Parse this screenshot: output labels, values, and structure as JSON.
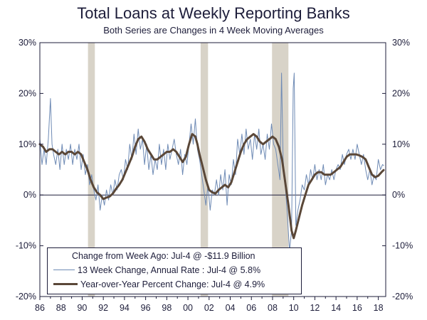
{
  "chart_data": {
    "type": "line",
    "title": "Total Loans at Weekly Reporting Banks",
    "subtitle": "Both Series are Changes in 4 Week Moving Averages",
    "ylim": [
      -20,
      30
    ],
    "y_ticks": [
      "30%",
      "20%",
      "10%",
      "0%",
      "-10%",
      "-20%"
    ],
    "y_tick_values": [
      30,
      20,
      10,
      0,
      -10,
      -20
    ],
    "x_range": [
      1986,
      2018.7
    ],
    "x_ticks": [
      "86",
      "88",
      "90",
      "92",
      "94",
      "96",
      "98",
      "00",
      "02",
      "04",
      "06",
      "08",
      "10",
      "12",
      "14",
      "16",
      "18"
    ],
    "x_tick_values": [
      1986,
      1988,
      1990,
      1992,
      1994,
      1996,
      1998,
      2000,
      2002,
      2004,
      2006,
      2008,
      2010,
      2012,
      2014,
      2016,
      2018
    ],
    "recessions": [
      [
        1990.55,
        1991.2
      ],
      [
        2001.2,
        2001.9
      ],
      [
        2007.95,
        2009.5
      ]
    ],
    "legend_title": "Change from Week Ago: Jul-4 @ -$11.9 Billion",
    "series": [
      {
        "name": "13 Week Change, Annual Rate : Jul-4 @ 5.8%",
        "color": "#6f8bb5",
        "style": "thin",
        "points": [
          [
            1986.0,
            11
          ],
          [
            1986.2,
            6
          ],
          [
            1986.4,
            9
          ],
          [
            1986.6,
            6
          ],
          [
            1986.8,
            11
          ],
          [
            1987.0,
            19
          ],
          [
            1987.15,
            10
          ],
          [
            1987.3,
            8
          ],
          [
            1987.5,
            6
          ],
          [
            1987.7,
            9
          ],
          [
            1987.9,
            5
          ],
          [
            1988.1,
            10
          ],
          [
            1988.3,
            6
          ],
          [
            1988.5,
            9
          ],
          [
            1988.7,
            7
          ],
          [
            1988.9,
            10
          ],
          [
            1989.1,
            6
          ],
          [
            1989.3,
            9
          ],
          [
            1989.5,
            7
          ],
          [
            1989.7,
            10
          ],
          [
            1989.9,
            5
          ],
          [
            1990.1,
            8
          ],
          [
            1990.3,
            4
          ],
          [
            1990.5,
            6
          ],
          [
            1990.7,
            2
          ],
          [
            1990.9,
            4
          ],
          [
            1991.1,
            1
          ],
          [
            1991.3,
            -1
          ],
          [
            1991.5,
            2
          ],
          [
            1991.7,
            -3
          ],
          [
            1991.9,
            0
          ],
          [
            1992.1,
            -2
          ],
          [
            1992.3,
            1
          ],
          [
            1992.5,
            -1
          ],
          [
            1992.7,
            2
          ],
          [
            1992.9,
            0
          ],
          [
            1993.1,
            3
          ],
          [
            1993.3,
            1
          ],
          [
            1993.5,
            4
          ],
          [
            1993.7,
            5
          ],
          [
            1993.9,
            3
          ],
          [
            1994.1,
            7
          ],
          [
            1994.3,
            5
          ],
          [
            1994.5,
            10
          ],
          [
            1994.7,
            7
          ],
          [
            1994.9,
            12
          ],
          [
            1995.1,
            8
          ],
          [
            1995.3,
            13
          ],
          [
            1995.5,
            9
          ],
          [
            1995.7,
            11
          ],
          [
            1995.9,
            6
          ],
          [
            1996.1,
            10
          ],
          [
            1996.3,
            5
          ],
          [
            1996.5,
            8
          ],
          [
            1996.7,
            4
          ],
          [
            1996.9,
            7
          ],
          [
            1997.1,
            5
          ],
          [
            1997.3,
            10
          ],
          [
            1997.5,
            6
          ],
          [
            1997.7,
            9
          ],
          [
            1997.9,
            5
          ],
          [
            1998.1,
            10
          ],
          [
            1998.3,
            7
          ],
          [
            1998.5,
            9
          ],
          [
            1998.7,
            11
          ],
          [
            1998.9,
            8
          ],
          [
            1999.1,
            6
          ],
          [
            1999.3,
            9
          ],
          [
            1999.5,
            4
          ],
          [
            1999.7,
            8
          ],
          [
            1999.9,
            6
          ],
          [
            2000.1,
            10
          ],
          [
            2000.3,
            14
          ],
          [
            2000.5,
            10
          ],
          [
            2000.7,
            15
          ],
          [
            2000.9,
            9
          ],
          [
            2001.1,
            7
          ],
          [
            2001.3,
            4
          ],
          [
            2001.5,
            1
          ],
          [
            2001.7,
            -2
          ],
          [
            2001.9,
            2
          ],
          [
            2002.1,
            -3
          ],
          [
            2002.3,
            1
          ],
          [
            2002.5,
            0
          ],
          [
            2002.7,
            3
          ],
          [
            2002.9,
            0
          ],
          [
            2003.1,
            4
          ],
          [
            2003.3,
            1
          ],
          [
            2003.5,
            5
          ],
          [
            2003.7,
            -2
          ],
          [
            2003.9,
            4
          ],
          [
            2004.1,
            2
          ],
          [
            2004.3,
            7
          ],
          [
            2004.5,
            4
          ],
          [
            2004.7,
            11
          ],
          [
            2004.9,
            8
          ],
          [
            2005.1,
            12
          ],
          [
            2005.3,
            8
          ],
          [
            2005.5,
            13
          ],
          [
            2005.7,
            9
          ],
          [
            2005.9,
            11
          ],
          [
            2006.1,
            7
          ],
          [
            2006.3,
            12
          ],
          [
            2006.5,
            9
          ],
          [
            2006.7,
            13
          ],
          [
            2006.9,
            8
          ],
          [
            2007.1,
            10
          ],
          [
            2007.3,
            7
          ],
          [
            2007.5,
            12
          ],
          [
            2007.7,
            9
          ],
          [
            2007.9,
            14
          ],
          [
            2008.1,
            10
          ],
          [
            2008.3,
            9
          ],
          [
            2008.5,
            6
          ],
          [
            2008.7,
            3
          ],
          [
            2008.85,
            24
          ],
          [
            2009.0,
            7
          ],
          [
            2009.2,
            2
          ],
          [
            2009.4,
            -4
          ],
          [
            2009.6,
            -11
          ],
          [
            2009.8,
            -7
          ],
          [
            2009.95,
            21
          ],
          [
            2010.05,
            24
          ],
          [
            2010.2,
            -6
          ],
          [
            2010.4,
            -3
          ],
          [
            2010.6,
            -1
          ],
          [
            2010.8,
            2
          ],
          [
            2011.0,
            1
          ],
          [
            2011.2,
            4
          ],
          [
            2011.4,
            2
          ],
          [
            2011.6,
            5
          ],
          [
            2011.8,
            3
          ],
          [
            2012.0,
            6
          ],
          [
            2012.2,
            3
          ],
          [
            2012.4,
            5
          ],
          [
            2012.6,
            3
          ],
          [
            2012.8,
            6
          ],
          [
            2013.0,
            2
          ],
          [
            2013.2,
            4
          ],
          [
            2013.4,
            3
          ],
          [
            2013.6,
            5
          ],
          [
            2013.8,
            3
          ],
          [
            2014.0,
            5
          ],
          [
            2014.2,
            6
          ],
          [
            2014.4,
            5
          ],
          [
            2014.6,
            8
          ],
          [
            2014.8,
            6
          ],
          [
            2015.0,
            8
          ],
          [
            2015.2,
            9
          ],
          [
            2015.4,
            7
          ],
          [
            2015.6,
            9
          ],
          [
            2015.8,
            7
          ],
          [
            2016.0,
            10
          ],
          [
            2016.2,
            8
          ],
          [
            2016.4,
            6
          ],
          [
            2016.6,
            8
          ],
          [
            2016.8,
            5
          ],
          [
            2017.0,
            3
          ],
          [
            2017.2,
            5
          ],
          [
            2017.4,
            2
          ],
          [
            2017.6,
            4
          ],
          [
            2017.8,
            3
          ],
          [
            2018.0,
            7
          ],
          [
            2018.2,
            5
          ],
          [
            2018.4,
            6
          ],
          [
            2018.5,
            5.8
          ]
        ]
      },
      {
        "name": "Year-over-Year Percent Change: Jul-4 @ 4.9%",
        "color": "#5a4738",
        "style": "thick",
        "points": [
          [
            1986.0,
            10
          ],
          [
            1986.3,
            9.5
          ],
          [
            1986.6,
            8.5
          ],
          [
            1986.9,
            9
          ],
          [
            1987.2,
            9
          ],
          [
            1987.5,
            8.5
          ],
          [
            1987.8,
            8
          ],
          [
            1988.1,
            8.5
          ],
          [
            1988.4,
            8
          ],
          [
            1988.7,
            8.5
          ],
          [
            1989.0,
            8.5
          ],
          [
            1989.3,
            8
          ],
          [
            1989.6,
            8.5
          ],
          [
            1989.9,
            8
          ],
          [
            1990.2,
            6.5
          ],
          [
            1990.5,
            5
          ],
          [
            1990.8,
            3
          ],
          [
            1991.1,
            1.5
          ],
          [
            1991.4,
            0.5
          ],
          [
            1991.7,
            0
          ],
          [
            1992.0,
            -0.8
          ],
          [
            1992.3,
            -0.5
          ],
          [
            1992.6,
            -0.3
          ],
          [
            1992.9,
            0.3
          ],
          [
            1993.2,
            1.2
          ],
          [
            1993.5,
            2
          ],
          [
            1993.8,
            3
          ],
          [
            1994.1,
            4.5
          ],
          [
            1994.4,
            6
          ],
          [
            1994.7,
            7.5
          ],
          [
            1995.0,
            9.5
          ],
          [
            1995.3,
            11
          ],
          [
            1995.6,
            11.5
          ],
          [
            1995.9,
            10.5
          ],
          [
            1996.2,
            9
          ],
          [
            1996.5,
            8
          ],
          [
            1996.8,
            7
          ],
          [
            1997.1,
            7
          ],
          [
            1997.4,
            7.5
          ],
          [
            1997.7,
            8
          ],
          [
            1998.0,
            8.5
          ],
          [
            1998.3,
            8.5
          ],
          [
            1998.6,
            9
          ],
          [
            1998.9,
            8.5
          ],
          [
            1999.2,
            7.5
          ],
          [
            1999.5,
            6.5
          ],
          [
            1999.8,
            7.5
          ],
          [
            2000.1,
            10
          ],
          [
            2000.4,
            12
          ],
          [
            2000.7,
            11.5
          ],
          [
            2000.9,
            10
          ],
          [
            2001.1,
            8
          ],
          [
            2001.4,
            5.5
          ],
          [
            2001.7,
            3
          ],
          [
            2002.0,
            1
          ],
          [
            2002.3,
            0.5
          ],
          [
            2002.6,
            0.3
          ],
          [
            2002.9,
            1
          ],
          [
            2003.2,
            1.5
          ],
          [
            2003.5,
            2
          ],
          [
            2003.8,
            1.5
          ],
          [
            2004.1,
            2.5
          ],
          [
            2004.4,
            4.5
          ],
          [
            2004.7,
            6.5
          ],
          [
            2005.0,
            8.5
          ],
          [
            2005.3,
            10
          ],
          [
            2005.6,
            11
          ],
          [
            2005.9,
            11.5
          ],
          [
            2006.2,
            12
          ],
          [
            2006.5,
            11.5
          ],
          [
            2006.8,
            10.5
          ],
          [
            2007.1,
            10
          ],
          [
            2007.4,
            10.5
          ],
          [
            2007.7,
            11
          ],
          [
            2008.0,
            11.5
          ],
          [
            2008.3,
            11
          ],
          [
            2008.6,
            9.5
          ],
          [
            2008.9,
            7
          ],
          [
            2009.2,
            2.5
          ],
          [
            2009.5,
            -2
          ],
          [
            2009.8,
            -7
          ],
          [
            2010.0,
            -8.5
          ],
          [
            2010.2,
            -7
          ],
          [
            2010.5,
            -4.5
          ],
          [
            2010.8,
            -2
          ],
          [
            2011.1,
            0
          ],
          [
            2011.4,
            2
          ],
          [
            2011.7,
            3
          ],
          [
            2012.0,
            4
          ],
          [
            2012.3,
            4.5
          ],
          [
            2012.6,
            4.5
          ],
          [
            2012.9,
            4
          ],
          [
            2013.2,
            4
          ],
          [
            2013.5,
            4
          ],
          [
            2013.8,
            4.5
          ],
          [
            2014.1,
            5
          ],
          [
            2014.4,
            5.5
          ],
          [
            2014.7,
            6.5
          ],
          [
            2015.0,
            7.5
          ],
          [
            2015.3,
            8
          ],
          [
            2015.6,
            8
          ],
          [
            2015.9,
            8
          ],
          [
            2016.2,
            7.8
          ],
          [
            2016.5,
            7.5
          ],
          [
            2016.8,
            7
          ],
          [
            2017.1,
            5.5
          ],
          [
            2017.4,
            4
          ],
          [
            2017.7,
            3.5
          ],
          [
            2018.0,
            3.8
          ],
          [
            2018.3,
            4.5
          ],
          [
            2018.5,
            4.9
          ]
        ]
      }
    ]
  }
}
